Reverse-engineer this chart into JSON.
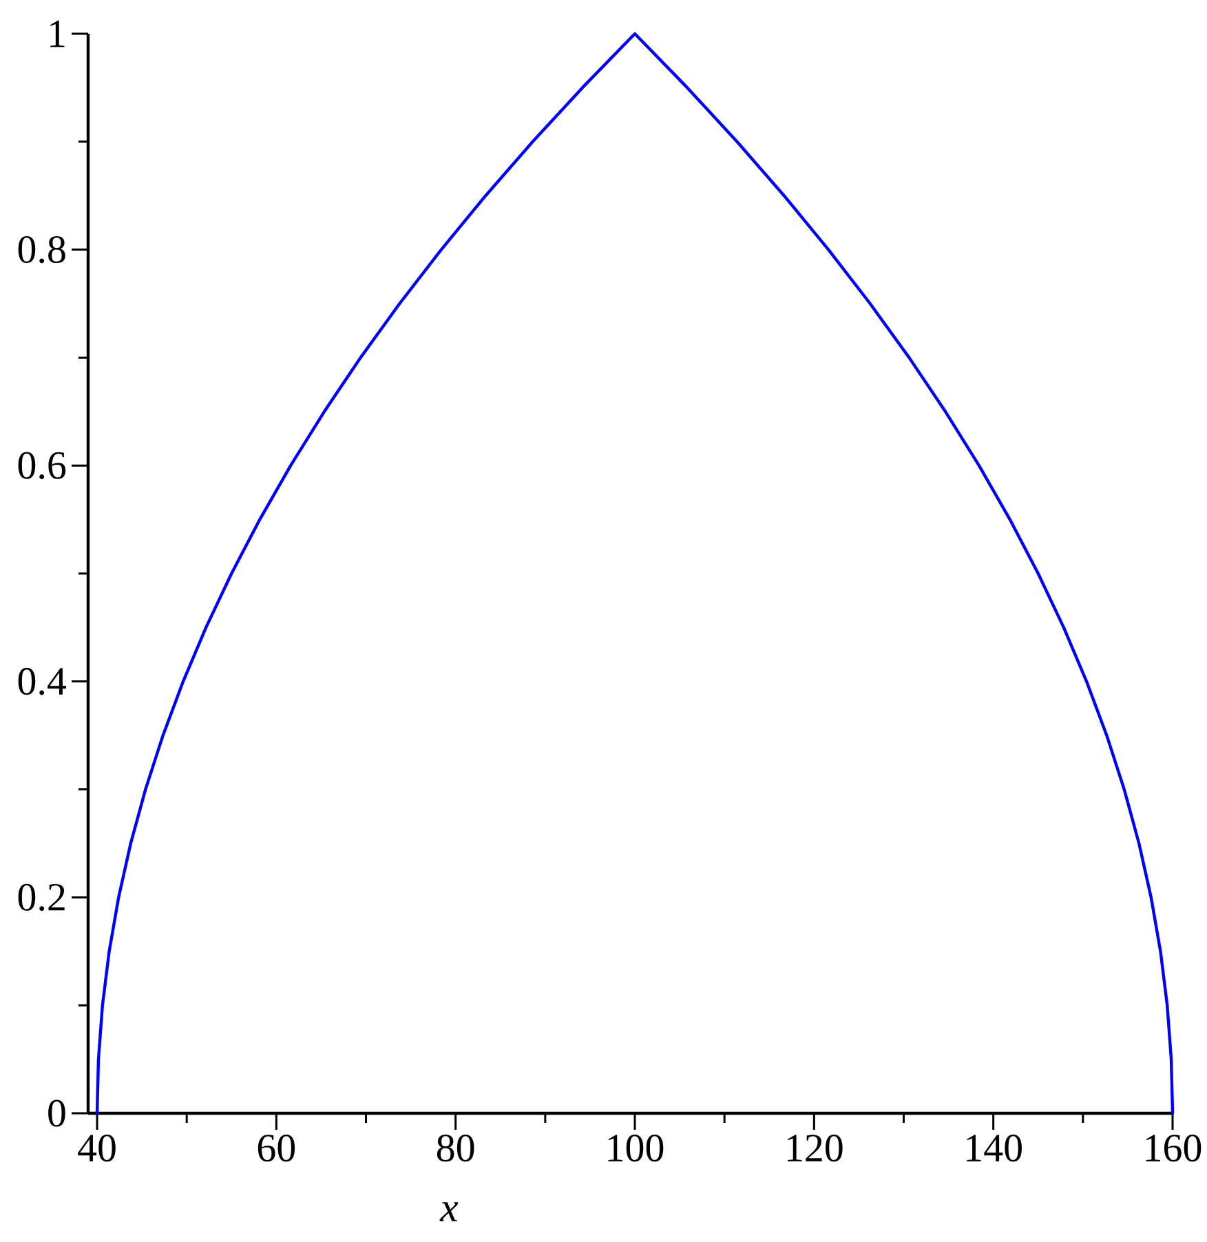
{
  "chart_data": {
    "type": "line",
    "xlabel": "x",
    "x": [
      40,
      40.15,
      40.6,
      41.35,
      42.4,
      43.75,
      45.4,
      47.35,
      49.6,
      52.15,
      55,
      58.15,
      61.6,
      65.35,
      69.4,
      73.75,
      78.4,
      83.35,
      88.6,
      94.15,
      100,
      105.85,
      111.4,
      116.65,
      121.6,
      126.25,
      130.6,
      134.65,
      138.4,
      141.85,
      145,
      147.85,
      150.4,
      152.65,
      154.6,
      156.25,
      157.6,
      158.65,
      159.4,
      159.85,
      160
    ],
    "values": [
      0,
      0.05,
      0.1,
      0.15,
      0.2,
      0.25,
      0.3,
      0.35,
      0.4,
      0.45,
      0.5,
      0.55,
      0.6,
      0.65,
      0.7,
      0.75,
      0.8,
      0.85,
      0.9,
      0.95,
      1,
      0.95,
      0.9,
      0.85,
      0.8,
      0.75,
      0.7,
      0.65,
      0.6,
      0.55,
      0.5,
      0.45,
      0.4,
      0.35,
      0.3,
      0.25,
      0.2,
      0.15,
      0.1,
      0.05,
      0
    ],
    "color": "#0000ff",
    "xlim": [
      39,
      160
    ],
    "ylim": [
      0,
      1
    ],
    "xticks": [
      40,
      {
        "value": 50,
        "label": null
      },
      60,
      {
        "value": 70,
        "label": null
      },
      80,
      {
        "value": 90,
        "label": null
      },
      100,
      {
        "value": 110,
        "label": null
      },
      120,
      {
        "value": 130,
        "label": null
      },
      140,
      {
        "value": 150,
        "label": null
      },
      160
    ],
    "yticks": [
      0,
      {
        "value": 0.1,
        "label": null
      },
      0.2,
      {
        "value": 0.3,
        "label": null
      },
      0.4,
      {
        "value": 0.5,
        "label": null
      },
      0.6,
      {
        "value": 0.7,
        "label": null
      },
      0.8,
      {
        "value": 0.9,
        "label": null
      },
      1
    ],
    "marker": "none",
    "line_style": "solid"
  }
}
